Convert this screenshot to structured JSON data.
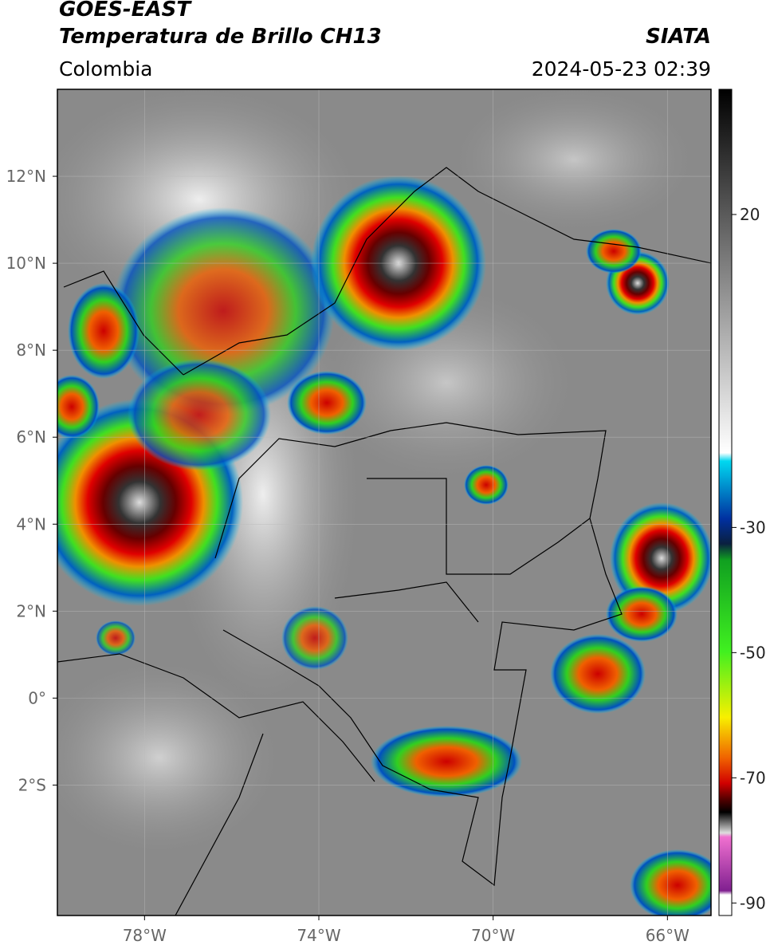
{
  "header": {
    "title": "GOES-EAST",
    "subtitle": "Temperatura de Brillo CH13",
    "region": "Colombia",
    "source": "SIATA",
    "datetime": "2024-05-23 02:39"
  },
  "map": {
    "xlim": [
      -80,
      -65
    ],
    "ylim": [
      -5,
      14
    ],
    "xticks": [
      {
        "value": -78,
        "label": "78°W"
      },
      {
        "value": -74,
        "label": "74°W"
      },
      {
        "value": -70,
        "label": "70°W"
      },
      {
        "value": -66,
        "label": "66°W"
      }
    ],
    "yticks": [
      {
        "value": 12,
        "label": "12°N"
      },
      {
        "value": 10,
        "label": "10°N"
      },
      {
        "value": 8,
        "label": "8°N"
      },
      {
        "value": 6,
        "label": "6°N"
      },
      {
        "value": 4,
        "label": "4°N"
      },
      {
        "value": 2,
        "label": "2°N"
      },
      {
        "value": 0,
        "label": "0°"
      },
      {
        "value": -2,
        "label": "2°S"
      }
    ],
    "grid": true
  },
  "colorbar": {
    "lim": [
      -92,
      40
    ],
    "ticks": [
      20,
      -30,
      -50,
      -70,
      -90
    ]
  }
}
